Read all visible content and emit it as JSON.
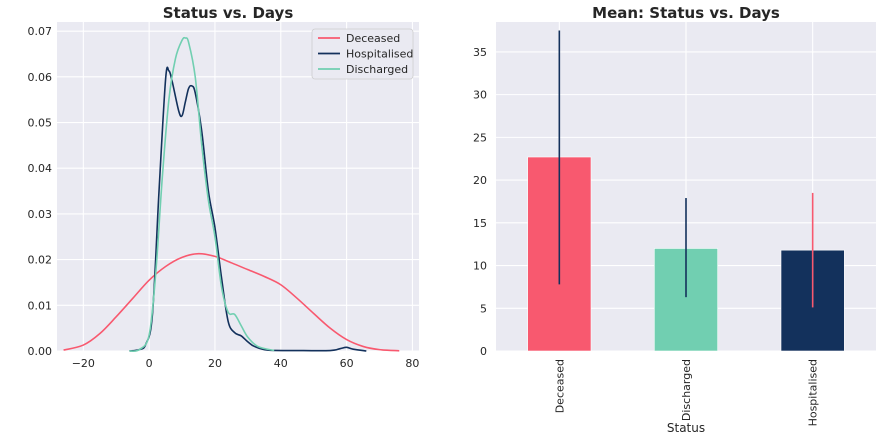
{
  "chart_data": [
    {
      "type": "line",
      "title": "Status vs. Days",
      "xlabel": "",
      "ylabel": "",
      "xlim": [
        -28,
        82
      ],
      "ylim": [
        0,
        0.072
      ],
      "x_ticks": [
        -20,
        0,
        20,
        40,
        60,
        80
      ],
      "y_ticks": [
        0.0,
        0.01,
        0.02,
        0.03,
        0.04,
        0.05,
        0.06,
        0.07
      ],
      "x_tick_labels": [
        "−20",
        "0",
        "20",
        "40",
        "60",
        "80"
      ],
      "y_tick_labels": [
        "0.00",
        "0.01",
        "0.02",
        "0.03",
        "0.04",
        "0.05",
        "0.06",
        "0.07"
      ],
      "grid": true,
      "legend": "top-right",
      "series": [
        {
          "name": "Deceased",
          "color": "#f8596f",
          "points": [
            [
              -26,
              0.0002
            ],
            [
              -20,
              0.0013
            ],
            [
              -15,
              0.0038
            ],
            [
              -10,
              0.0075
            ],
            [
              -5,
              0.0115
            ],
            [
              0,
              0.0155
            ],
            [
              5,
              0.0185
            ],
            [
              10,
              0.0205
            ],
            [
              15,
              0.0213
            ],
            [
              20,
              0.0207
            ],
            [
              25,
              0.0193
            ],
            [
              30,
              0.0178
            ],
            [
              35,
              0.0163
            ],
            [
              40,
              0.0145
            ],
            [
              45,
              0.0115
            ],
            [
              50,
              0.0082
            ],
            [
              55,
              0.005
            ],
            [
              60,
              0.0025
            ],
            [
              65,
              0.001
            ],
            [
              70,
              0.0003
            ],
            [
              76,
              5e-05
            ]
          ]
        },
        {
          "name": "Hospitalised",
          "color": "#13315c",
          "points": [
            [
              -6,
              0
            ],
            [
              -3,
              0.0003
            ],
            [
              -1,
              0.0015
            ],
            [
              1,
              0.008
            ],
            [
              3,
              0.035
            ],
            [
              5,
              0.0595
            ],
            [
              6,
              0.0613
            ],
            [
              7,
              0.059
            ],
            [
              9,
              0.0525
            ],
            [
              10,
              0.0515
            ],
            [
              11,
              0.0545
            ],
            [
              12,
              0.0575
            ],
            [
              13,
              0.058
            ],
            [
              14,
              0.0565
            ],
            [
              16,
              0.048
            ],
            [
              18,
              0.035
            ],
            [
              20,
              0.027
            ],
            [
              22,
              0.016
            ],
            [
              24,
              0.0065
            ],
            [
              26,
              0.004
            ],
            [
              28,
              0.0033
            ],
            [
              30,
              0.002
            ],
            [
              32,
              0.001
            ],
            [
              36,
              0.0002
            ],
            [
              45,
              0.0001
            ],
            [
              55,
              0.0001
            ],
            [
              58,
              0.0005
            ],
            [
              60,
              0.0008
            ],
            [
              62,
              0.0004
            ],
            [
              66,
              0
            ]
          ]
        },
        {
          "name": "Discharged",
          "color": "#71cfb1",
          "points": [
            [
              -6,
              0
            ],
            [
              -3,
              0.0003
            ],
            [
              0,
              0.0035
            ],
            [
              2,
              0.017
            ],
            [
              4,
              0.038
            ],
            [
              6,
              0.055
            ],
            [
              8,
              0.064
            ],
            [
              10,
              0.068
            ],
            [
              11,
              0.0685
            ],
            [
              12,
              0.0675
            ],
            [
              14,
              0.06
            ],
            [
              16,
              0.045
            ],
            [
              18,
              0.033
            ],
            [
              20,
              0.025
            ],
            [
              22,
              0.014
            ],
            [
              24,
              0.0085
            ],
            [
              26,
              0.008
            ],
            [
              28,
              0.0055
            ],
            [
              30,
              0.003
            ],
            [
              33,
              0.001
            ],
            [
              38,
              0.0001
            ]
          ]
        }
      ]
    },
    {
      "type": "bar",
      "title": "Mean: Status vs. Days",
      "xlabel": "Status",
      "ylabel": "",
      "ylim": [
        0,
        38.5
      ],
      "y_ticks": [
        0,
        5,
        10,
        15,
        20,
        25,
        30,
        35
      ],
      "y_tick_labels": [
        "0",
        "5",
        "10",
        "15",
        "20",
        "25",
        "30",
        "35"
      ],
      "grid": true,
      "categories": [
        "Deceased",
        "Discharged",
        "Hospitalised"
      ],
      "values": [
        22.7,
        12.0,
        11.8
      ],
      "error_low": [
        7.8,
        6.3,
        5.1
      ],
      "error_high": [
        37.5,
        17.9,
        18.5
      ],
      "bar_colors": [
        "#f8596f",
        "#71cfb1",
        "#13315c"
      ],
      "error_colors": [
        "#13315c",
        "#13315c",
        "#f8596f"
      ]
    }
  ]
}
